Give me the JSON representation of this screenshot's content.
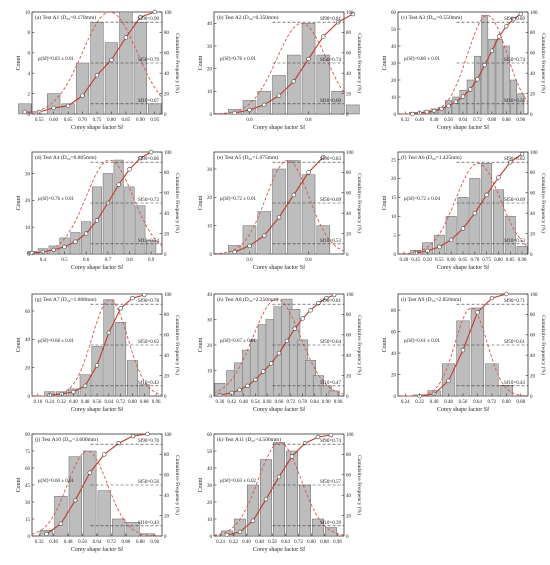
{
  "figure": {
    "label_cumulative": "Cumulative Frequency (%)",
    "label_count": "Count"
  },
  "chart_data": [
    {
      "panel": "a",
      "title": "(a) Test A1 (D₅₀=0.178mm)",
      "type": "bar",
      "xlabel": "Corey shape factor Sf",
      "categories": [
        0.5,
        0.55,
        0.6,
        0.65,
        0.7,
        0.75,
        0.8,
        0.85,
        0.9,
        0.95
      ],
      "values": [
        1,
        0,
        2,
        1,
        5,
        9,
        7,
        10,
        9,
        1
      ],
      "cumulative": [
        2,
        2,
        6,
        8,
        18,
        38,
        53,
        75,
        95,
        100
      ],
      "xticks": [
        "0.55",
        "0.60",
        "0.65",
        "0.70",
        "0.75",
        "0.80",
        "0.85",
        "0.90",
        "0.95"
      ],
      "yticks": [
        0,
        2,
        4,
        6,
        8,
        10
      ],
      "ylim": [
        0,
        10
      ],
      "annotations": [
        "μ(Sf)=0.83 ± 0.01",
        "Sf90=0.90",
        "Sf50=0.79",
        "Sf10=0.67"
      ]
    },
    {
      "panel": "b",
      "title": "(b) Test A2 (D₅₀=0.350mm)",
      "type": "bar",
      "xlabel": "Corey shape factor Sf",
      "categories": [
        0.55,
        0.6,
        0.65,
        0.7,
        0.75,
        0.8,
        0.85,
        0.9,
        0.95
      ],
      "values": [
        2,
        6,
        10,
        17,
        26,
        40,
        26,
        10,
        4
      ],
      "cumulative": [
        1,
        4,
        9,
        18,
        32,
        54,
        76,
        90,
        98
      ],
      "xticks": [
        "0.6",
        "0.8"
      ],
      "yticks": [
        0,
        10,
        20,
        30,
        40
      ],
      "ylim": [
        0,
        45
      ],
      "annotations": [
        "μ(Sf)=0.78 ± 0.01",
        "Sf90=0.81",
        "Sf50=0.74",
        "Sf10=0.60"
      ]
    },
    {
      "panel": "c",
      "title": "(c) Test A3 (D₅₀=0.550mm)",
      "type": "bar",
      "xlabel": "Corey shape factor Sf",
      "categories": [
        0.36,
        0.4,
        0.44,
        0.48,
        0.52,
        0.56,
        0.6,
        0.64,
        0.68,
        0.72,
        0.76,
        0.8,
        0.84,
        0.88,
        0.92,
        0.96
      ],
      "values": [
        1,
        1,
        2,
        3,
        4,
        8,
        10,
        14,
        20,
        34,
        58,
        44,
        44,
        40,
        20,
        12
      ],
      "cumulative": [
        0,
        1,
        2,
        3,
        5,
        8,
        12,
        17,
        24,
        34,
        48,
        62,
        76,
        86,
        93,
        98
      ],
      "xticks": [
        "0.32",
        "0.40",
        "0.48",
        "0.56",
        "0.64",
        "0.72",
        "0.80",
        "0.88",
        "0.96"
      ],
      "yticks": [
        0,
        10,
        20,
        30,
        40,
        50,
        60
      ],
      "ylim": [
        0,
        60
      ],
      "annotations": [
        "μ(Sf)=0.80 ± 0.01",
        "Sf90=0.89",
        "Sf50=0.74",
        "Sf10=0.56"
      ]
    },
    {
      "panel": "d",
      "title": "(d) Test A4 (D₅₀=0.805mm)",
      "type": "bar",
      "xlabel": "Corey shape factor Sf",
      "categories": [
        0.35,
        0.4,
        0.45,
        0.5,
        0.55,
        0.6,
        0.65,
        0.7,
        0.75,
        0.8,
        0.85,
        0.9
      ],
      "values": [
        1,
        2,
        3,
        6,
        8,
        12,
        25,
        30,
        35,
        25,
        18,
        5
      ],
      "cumulative": [
        1,
        2,
        4,
        7,
        12,
        20,
        33,
        50,
        68,
        83,
        94,
        100
      ],
      "xticks": [
        "0.4",
        "0.5",
        "0.6",
        "0.7",
        "0.8",
        "0.9"
      ],
      "yticks": [
        0,
        10,
        20,
        30
      ],
      "ylim": [
        0,
        38
      ],
      "annotations": [
        "μ(Sf)=0.76 ± 0.01",
        "Sf90=0.86",
        "Sf50=0.72",
        "Sf10=0.54"
      ]
    },
    {
      "panel": "e",
      "title": "(e) Test A5 (D₅₀=1.075mm)",
      "type": "bar",
      "xlabel": "Corey shape factor Sf",
      "categories": [
        0.55,
        0.6,
        0.65,
        0.7,
        0.75,
        0.8,
        0.85
      ],
      "values": [
        3,
        10,
        15,
        30,
        33,
        28,
        10
      ],
      "cumulative": [
        2,
        8,
        18,
        36,
        58,
        80,
        95
      ],
      "xticks": [
        "0.6",
        "0.8"
      ],
      "yticks": [
        0,
        10,
        20,
        30
      ],
      "ylim": [
        0,
        36
      ],
      "annotations": [
        "μ(Sf)=0.72 ± 0.01",
        "Sf90=0.83",
        "Sf50=0.69",
        "Sf10=0.53"
      ]
    },
    {
      "panel": "f",
      "title": "(f) Test A6 (D₅₀=1.425mm)",
      "type": "bar",
      "xlabel": "Corey shape factor Sf",
      "categories": [
        0.45,
        0.5,
        0.55,
        0.6,
        0.65,
        0.7,
        0.75,
        0.8,
        0.85,
        0.9
      ],
      "values": [
        1,
        3,
        5,
        10,
        15,
        20,
        24,
        17,
        10,
        2
      ],
      "cumulative": [
        1,
        3,
        7,
        14,
        25,
        40,
        58,
        75,
        90,
        98
      ],
      "xticks": [
        "0.40",
        "0.45",
        "0.50",
        "0.55",
        "0.60",
        "0.65",
        "0.70",
        "0.75",
        "0.80",
        "0.85",
        "0.90"
      ],
      "yticks": [
        0,
        5,
        10,
        15,
        20,
        25
      ],
      "ylim": [
        0,
        27
      ],
      "annotations": [
        "μ(Sf)=0.72 ± 0.04",
        "Sf90=0.82",
        "Sf50=0.69",
        "Sf10=0.53"
      ]
    },
    {
      "panel": "g",
      "title": "(g) Test A7 (D₅₀=1.808mm)",
      "type": "bar",
      "xlabel": "Corey shape factor Sf",
      "categories": [
        0.24,
        0.32,
        0.4,
        0.48,
        0.56,
        0.64,
        0.72,
        0.8,
        0.88
      ],
      "values": [
        3,
        3,
        5,
        15,
        35,
        68,
        52,
        25,
        8
      ],
      "cumulative": [
        1,
        2,
        4,
        10,
        30,
        62,
        86,
        96,
        99
      ],
      "xticks": [
        "0.16",
        "0.24",
        "0.32",
        "0.40",
        "0.48",
        "0.56",
        "0.64",
        "0.72",
        "0.80",
        "0.88",
        "0.96"
      ],
      "yticks": [
        0,
        20,
        40,
        60
      ],
      "ylim": [
        0,
        72
      ],
      "annotations": [
        "μ(Sf)=0.68 ± 0.01",
        "Sf90=0.78",
        "Sf50=0.62",
        "Sf10=0.43"
      ]
    },
    {
      "panel": "h",
      "title": "(h) Test A8 (D₅₀=2.250mm)",
      "type": "bar",
      "xlabel": "Corey shape factor Sf",
      "categories": [
        0.36,
        0.42,
        0.46,
        0.5,
        0.54,
        0.58,
        0.62,
        0.66,
        0.7,
        0.74,
        0.78,
        0.82,
        0.86,
        0.9,
        0.94
      ],
      "values": [
        5,
        10,
        13,
        18,
        22,
        28,
        30,
        35,
        38,
        34,
        22,
        14,
        8,
        4,
        2
      ],
      "cumulative": [
        1,
        3,
        6,
        10,
        16,
        24,
        32,
        42,
        54,
        66,
        76,
        84,
        91,
        96,
        99
      ],
      "xticks": [
        "0.36",
        "0.42",
        "0.48",
        "0.54",
        "0.60",
        "0.66",
        "0.72",
        "0.78",
        "0.84",
        "0.90",
        "0.96"
      ],
      "yticks": [
        0,
        10,
        20,
        30,
        40
      ],
      "ylim": [
        0,
        40
      ],
      "annotations": [
        "μ(Sf)=0.67 ± 0.01",
        "Sf90=0.81",
        "Sf50=0.64",
        "Sf10=0.47"
      ]
    },
    {
      "panel": "i",
      "title": "(i) Test A9 (D₅₀=2.850mm)",
      "type": "bar",
      "xlabel": "Corey shape factor Sf",
      "categories": [
        0.32,
        0.4,
        0.48,
        0.56,
        0.64,
        0.72,
        0.8
      ],
      "values": [
        1,
        5,
        30,
        70,
        82,
        30,
        10
      ],
      "cumulative": [
        0,
        2,
        15,
        45,
        82,
        96,
        100
      ],
      "xticks": [
        "0.24",
        "0.32",
        "0.40",
        "0.48",
        "0.56",
        "0.64",
        "0.72",
        "0.80",
        "0.88"
      ],
      "yticks": [
        0,
        20,
        40,
        60,
        80
      ],
      "ylim": [
        0,
        95
      ],
      "annotations": [
        "μ(Sf)=0.61 ± 0.01",
        "Sf90=0.71",
        "Sf50=0.61",
        "Sf10=0.43"
      ]
    },
    {
      "panel": "j",
      "title": "(j) Test A10 (D₅₀=3.600mm)",
      "type": "bar",
      "xlabel": "Corey shape factor Sf",
      "categories": [
        0.36,
        0.44,
        0.52,
        0.6,
        0.68,
        0.76,
        0.84,
        0.92
      ],
      "values": [
        5,
        35,
        70,
        75,
        40,
        15,
        12,
        2
      ],
      "cumulative": [
        2,
        12,
        35,
        62,
        80,
        91,
        98,
        100
      ],
      "xticks": [
        "0.32",
        "0.40",
        "0.48",
        "0.56",
        "0.64",
        "0.72",
        "0.80",
        "0.88",
        "0.96"
      ],
      "yticks": [
        0,
        15,
        30,
        45,
        60,
        75,
        90
      ],
      "ylim": [
        0,
        90
      ],
      "annotations": [
        "μ(Sf)=0.60 ± 0.01",
        "Sf90=0.70",
        "Sf50=0.56",
        "Sf10=0.43"
      ]
    },
    {
      "panel": "k",
      "title": "(k) Test A11 (D₅₀=4.500mm)",
      "type": "bar",
      "xlabel": "Corey shape factor Sf",
      "categories": [
        0.28,
        0.36,
        0.44,
        0.52,
        0.6,
        0.68,
        0.76,
        0.84,
        0.92
      ],
      "values": [
        3,
        10,
        30,
        45,
        55,
        50,
        30,
        10,
        5
      ],
      "cumulative": [
        1,
        4,
        15,
        36,
        58,
        78,
        91,
        97,
        99
      ],
      "xticks": [
        "0.24",
        "0.32",
        "0.40",
        "0.48",
        "0.56",
        "0.64",
        "0.72",
        "0.80",
        "0.88",
        "0.96"
      ],
      "yticks": [
        0,
        10,
        20,
        30,
        40,
        50,
        60
      ],
      "ylim": [
        0,
        60
      ],
      "annotations": [
        "μ(Sf)=0.63 ± 0.02",
        "Sf90=0.74",
        "Sf50=0.57",
        "Sf10=0.39"
      ]
    }
  ]
}
